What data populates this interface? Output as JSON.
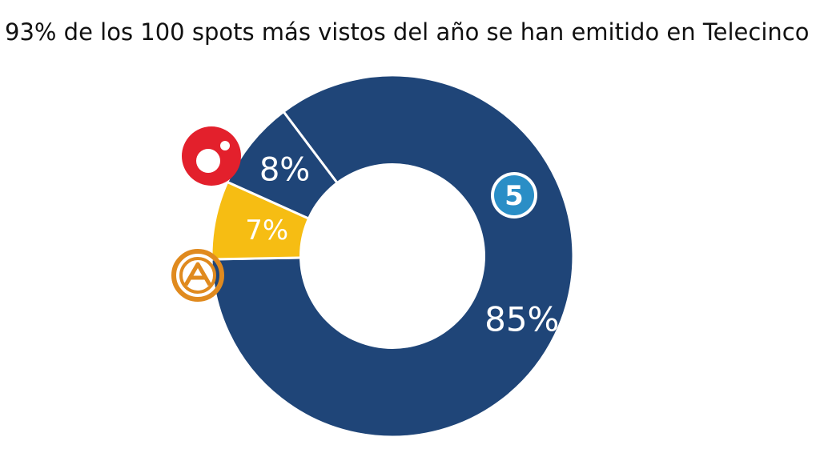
{
  "chart_data": {
    "type": "pie",
    "variant": "donut",
    "title": "93% de los 100 spots más vistos del año se han emitido en Telecinco",
    "categories": [
      "Telecinco",
      "Antena 3",
      "Cuatro"
    ],
    "values": [
      85,
      7,
      8
    ],
    "labels": [
      "85%",
      "7%",
      "8%"
    ],
    "icons": [
      "telecinco-logo-icon",
      "antena3-logo-icon",
      "cuatro-logo-icon"
    ],
    "colors": [
      "#1f4578",
      "#f6bd13",
      "#1f4578"
    ],
    "separator_color": "#ffffff"
  },
  "colors": {
    "telecinco_logo": "#2a8ec6",
    "antena3_logo": "#e08a1e",
    "cuatro_logo": "#e3202c"
  }
}
